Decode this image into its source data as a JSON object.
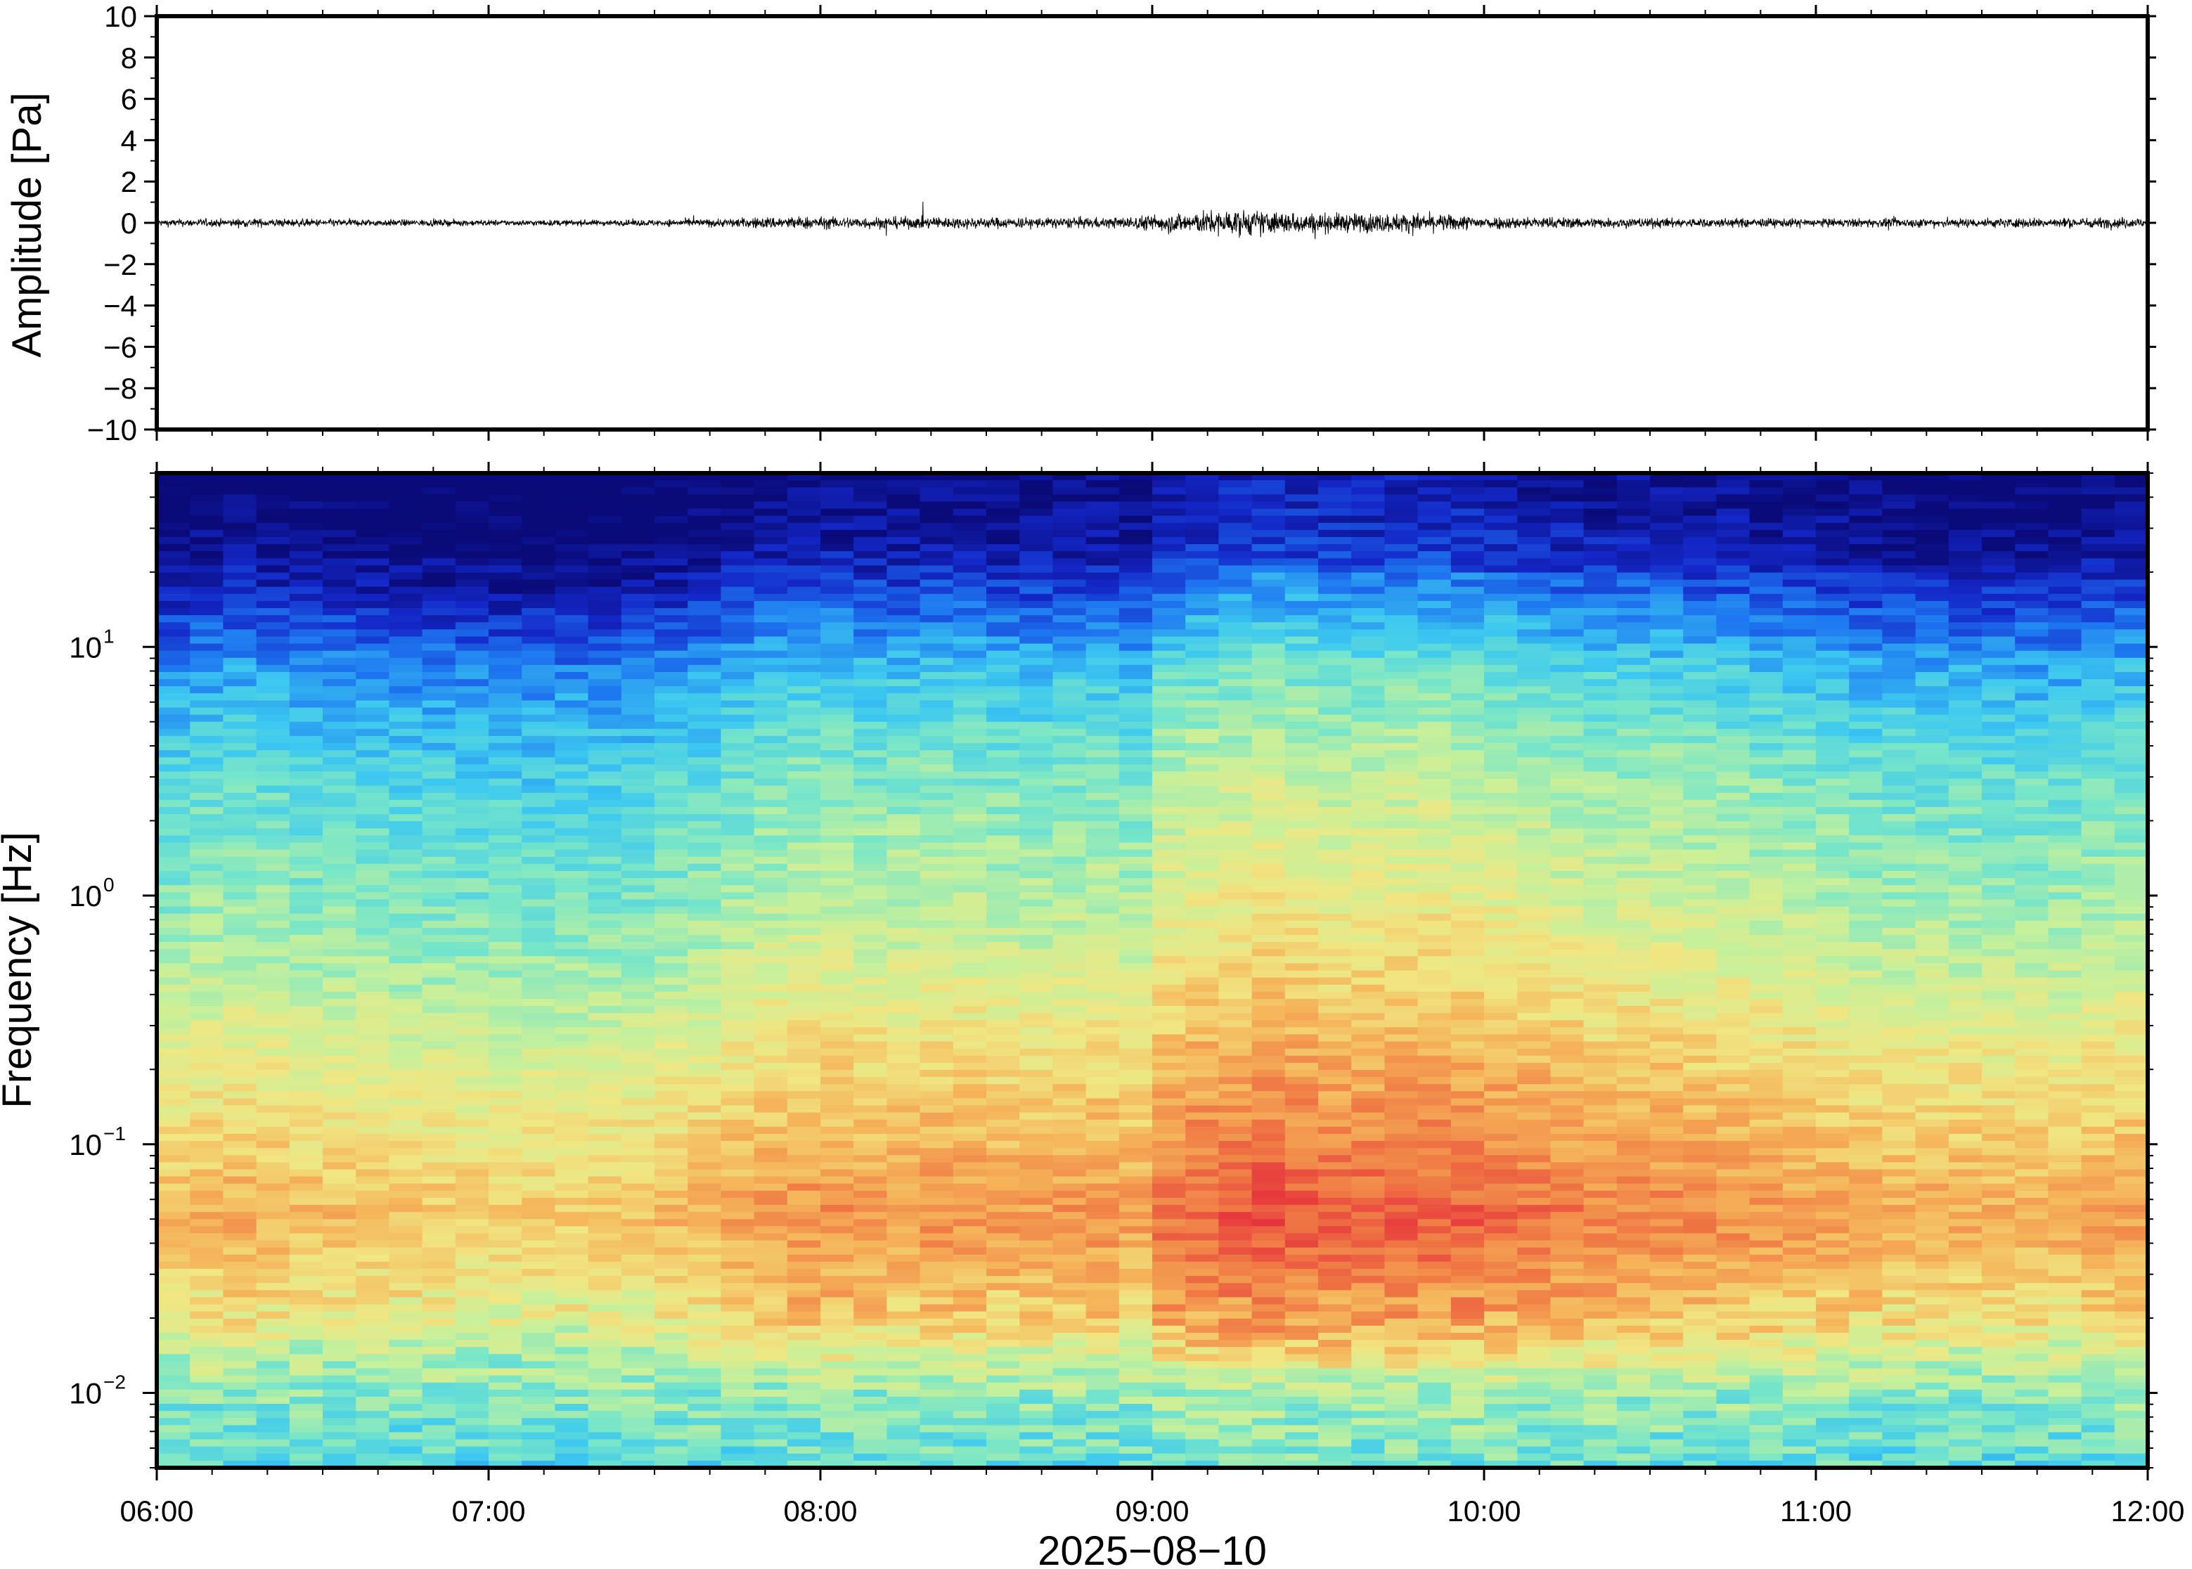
{
  "chart_data": [
    {
      "type": "line",
      "panel": "waveform",
      "ylabel": "Amplitude [Pa]",
      "ylim": [
        -10,
        10
      ],
      "yticks": [
        10,
        8,
        6,
        4,
        2,
        0,
        -2,
        -4,
        -6,
        -8,
        -10
      ],
      "ytick_labels": [
        "10",
        "8",
        "6",
        "4",
        "2",
        "0",
        "−2",
        "−4",
        "−6",
        "−8",
        "−10"
      ],
      "xlim": [
        "06:00",
        "12:00"
      ],
      "envelope": {
        "t_hours": [
          6.0,
          6.3,
          6.6,
          7.0,
          7.4,
          7.7,
          7.9,
          8.0,
          8.3,
          8.6,
          8.9,
          9.05,
          9.25,
          9.5,
          9.8,
          10.0,
          10.3,
          10.6,
          11.0,
          11.5,
          12.0
        ],
        "amplitude_pa": [
          0.3,
          0.35,
          0.3,
          0.25,
          0.25,
          0.35,
          0.55,
          0.5,
          0.5,
          0.45,
          0.45,
          0.8,
          1.1,
          0.8,
          0.8,
          0.55,
          0.45,
          0.4,
          0.35,
          0.4,
          0.45
        ]
      }
    },
    {
      "type": "heatmap",
      "panel": "spectrogram",
      "ylabel": "Frequency [Hz]",
      "yscale": "log",
      "ylim": [
        0.005,
        50
      ],
      "yticks": [
        0.01,
        0.1,
        1,
        10
      ],
      "ytick_labels": [
        {
          "base": "10",
          "exp": "−2"
        },
        {
          "base": "10",
          "exp": "−1"
        },
        {
          "base": "10",
          "exp": "0"
        },
        {
          "base": "10",
          "exp": "1"
        }
      ],
      "xlabel": "2025−08−10",
      "xlim": [
        "06:00",
        "12:00"
      ],
      "xtick_labels": [
        "06:00",
        "07:00",
        "08:00",
        "09:00",
        "10:00",
        "11:00",
        "12:00"
      ],
      "colormap": [
        "#0a0a78",
        "#1428c8",
        "#1e78f0",
        "#3cc8f0",
        "#78e6c8",
        "#c8f09a",
        "#f0e682",
        "#f5b45a",
        "#ef7844",
        "#e6323c"
      ],
      "time_bins": 60,
      "noise_level_by_time": [
        0.3,
        0.33,
        0.35,
        0.33,
        0.3,
        0.3,
        0.28,
        0.27,
        0.26,
        0.25,
        0.25,
        0.24,
        0.25,
        0.26,
        0.27,
        0.3,
        0.33,
        0.38,
        0.42,
        0.45,
        0.45,
        0.42,
        0.43,
        0.45,
        0.44,
        0.42,
        0.41,
        0.43,
        0.44,
        0.4,
        0.55,
        0.6,
        0.62,
        0.65,
        0.63,
        0.6,
        0.6,
        0.61,
        0.62,
        0.6,
        0.58,
        0.55,
        0.52,
        0.5,
        0.5,
        0.49,
        0.47,
        0.46,
        0.44,
        0.42,
        0.4,
        0.38,
        0.37,
        0.36,
        0.36,
        0.35,
        0.35,
        0.36,
        0.38,
        0.4
      ]
    }
  ]
}
